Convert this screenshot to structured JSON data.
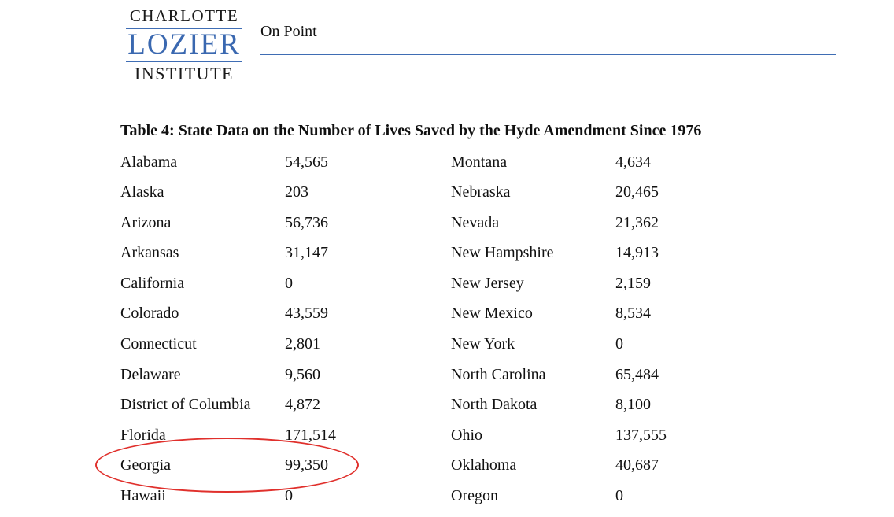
{
  "header": {
    "logo_line1": "CHARLOTTE",
    "logo_line2": "LOZIER",
    "logo_line3": "INSTITUTE",
    "section": "On Point",
    "accent_color": "#3f6db4"
  },
  "table": {
    "caption": "Table 4: State Data on the Number of Lives Saved by the Hyde Amendment Since 1976",
    "rows": [
      {
        "s1": "Alabama",
        "v1": "54,565",
        "s2": "Montana",
        "v2": "4,634"
      },
      {
        "s1": "Alaska",
        "v1": "203",
        "s2": "Nebraska",
        "v2": "20,465"
      },
      {
        "s1": "Arizona",
        "v1": "56,736",
        "s2": "Nevada",
        "v2": "21,362"
      },
      {
        "s1": "Arkansas",
        "v1": "31,147",
        "s2": "New Hampshire",
        "v2": "14,913"
      },
      {
        "s1": "California",
        "v1": "0",
        "s2": "New Jersey",
        "v2": "2,159"
      },
      {
        "s1": "Colorado",
        "v1": "43,559",
        "s2": "New Mexico",
        "v2": "8,534"
      },
      {
        "s1": "Connecticut",
        "v1": "2,801",
        "s2": "New York",
        "v2": "0"
      },
      {
        "s1": "Delaware",
        "v1": "9,560",
        "s2": "North Carolina",
        "v2": "65,484"
      },
      {
        "s1": "District of Columbia",
        "v1": "4,872",
        "s2": "North Dakota",
        "v2": "8,100"
      },
      {
        "s1": "Florida",
        "v1": "171,514",
        "s2": "Ohio",
        "v2": "137,555"
      },
      {
        "s1": "Georgia",
        "v1": "99,350",
        "s2": "Oklahoma",
        "v2": "40,687"
      },
      {
        "s1": "Hawaii",
        "v1": "0",
        "s2": "Oregon",
        "v2": "0"
      }
    ]
  },
  "highlight": {
    "row": "Georgia",
    "color": "#e0302c"
  }
}
